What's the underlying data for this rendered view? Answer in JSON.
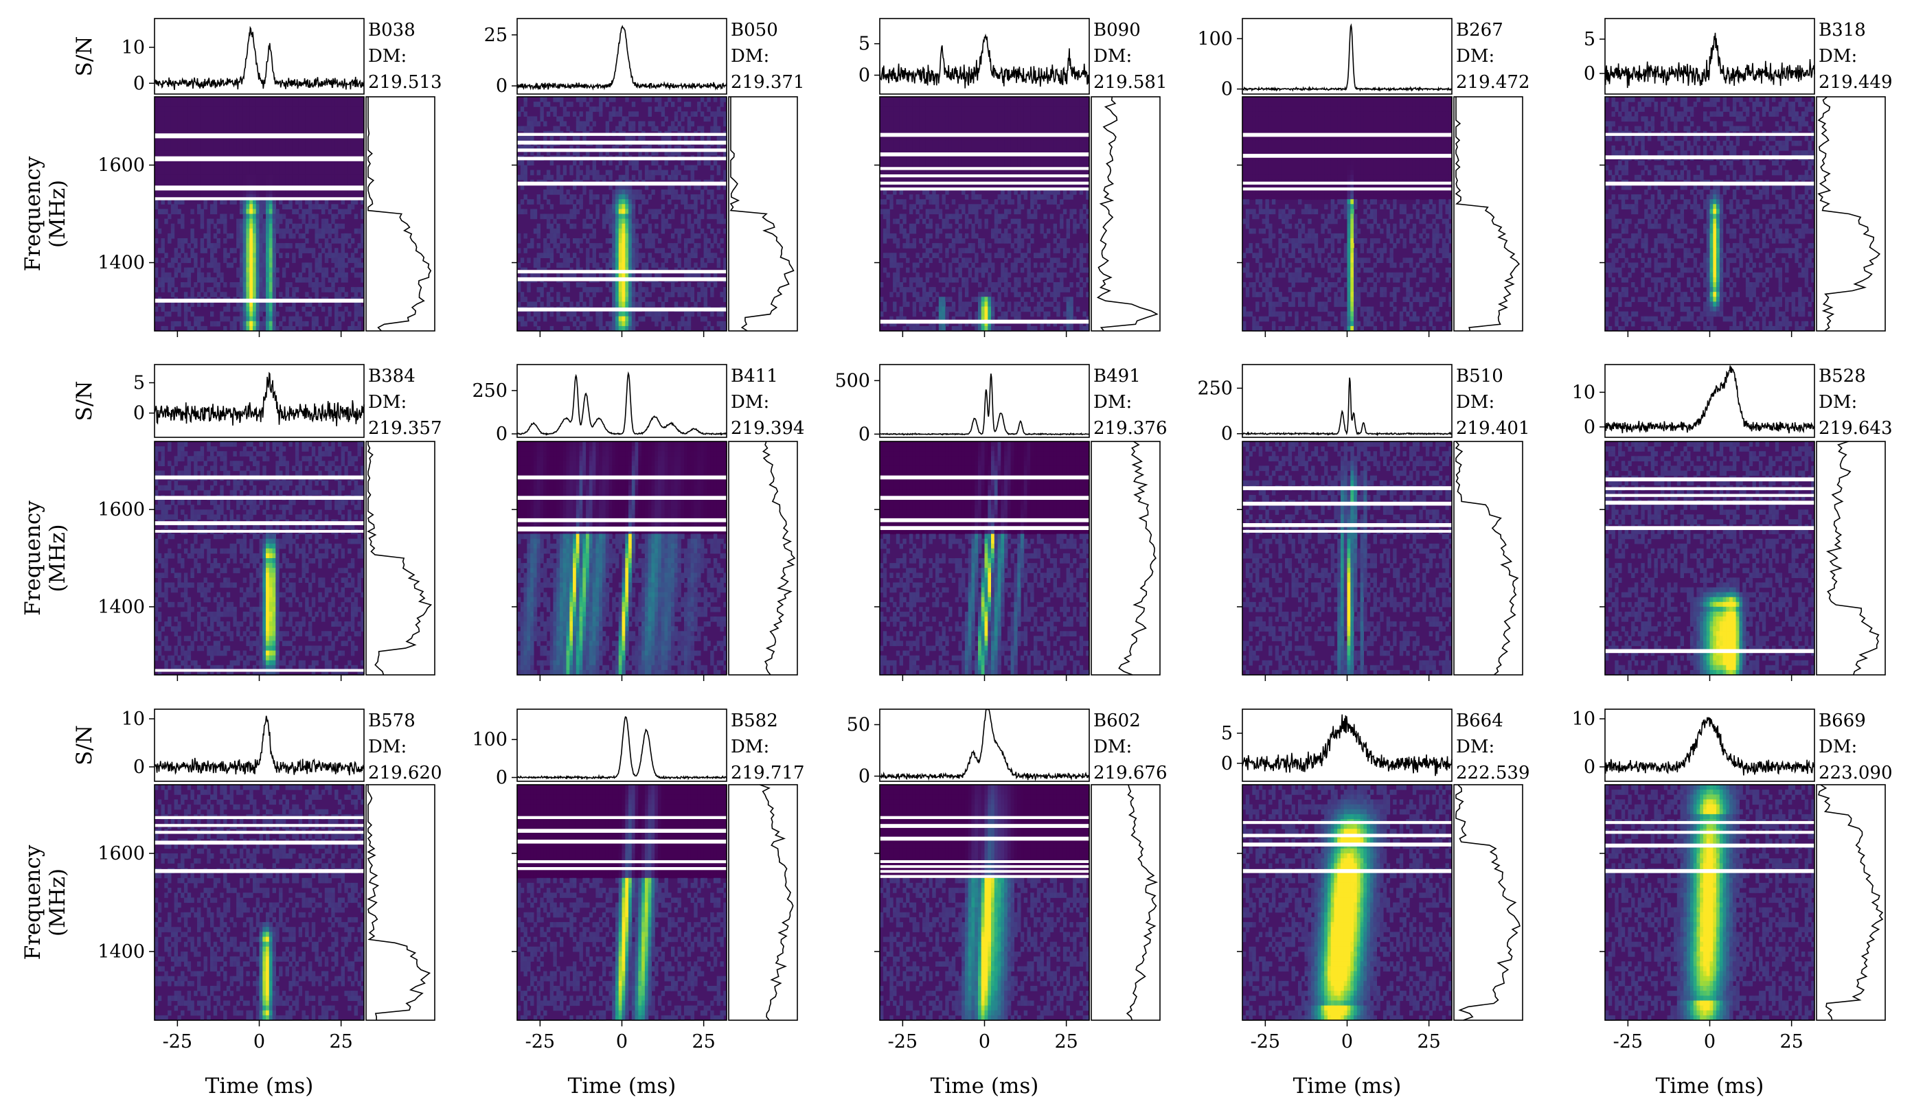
{
  "chart_data": {
    "type": "grid",
    "shared_axes": {
      "sn_ylabel": "S/N",
      "freq_ylabel": "Frequency\n(MHz)",
      "xlabel": "Time (ms)",
      "xlim": [
        -32,
        32
      ],
      "xticks": [
        -25,
        0,
        25
      ],
      "freq_ylim": [
        1260,
        1740
      ],
      "freq_yticks": [
        1400,
        1600
      ]
    },
    "bursts": [
      {
        "name": "B038",
        "dm_label": "DM:",
        "dm": "219.513",
        "sn_yticks": [
          0,
          10
        ],
        "sn_ylim": [
          -3,
          18
        ],
        "pulses": [
          {
            "t": -2.5,
            "amp": 15,
            "w": 1.2
          },
          {
            "t": 3.2,
            "amp": 10,
            "w": 0.7
          }
        ],
        "noise": 1.0,
        "masked_bands": [
          [
            1655,
            1665
          ],
          [
            1608,
            1618
          ],
          [
            1548,
            1558
          ],
          [
            1528,
            1534
          ],
          [
            1318,
            1326
          ]
        ],
        "masked_bottom": 1530,
        "masked_level": 0.04,
        "burst_freq": [
          1280,
          1500
        ],
        "spec_trend": 0.6,
        "drift": 0
      },
      {
        "name": "B050",
        "dm_label": "DM:",
        "dm": "219.371",
        "sn_yticks": [
          0,
          25
        ],
        "sn_ylim": [
          -4,
          33
        ],
        "pulses": [
          {
            "t": 0.3,
            "amp": 29,
            "w": 1.4
          }
        ],
        "noise": 1.0,
        "masked_bands": [
          [
            1660,
            1666
          ],
          [
            1642,
            1650
          ],
          [
            1627,
            1634
          ],
          [
            1610,
            1617
          ],
          [
            1558,
            1566
          ],
          [
            1378,
            1385
          ],
          [
            1362,
            1370
          ],
          [
            1300,
            1308
          ]
        ],
        "masked_bottom": 0,
        "masked_level": 0,
        "burst_freq": [
          1290,
          1500
        ],
        "spec_trend": 0.5,
        "drift": 0
      },
      {
        "name": "B090",
        "dm_label": "DM:",
        "dm": "219.581",
        "sn_yticks": [
          0,
          5
        ],
        "sn_ylim": [
          -3,
          9
        ],
        "pulses": [
          {
            "t": -13,
            "amp": 4,
            "w": 0.4
          },
          {
            "t": 0.3,
            "amp": 6.5,
            "w": 1.0
          },
          {
            "t": 26,
            "amp": 3,
            "w": 0.3
          }
        ],
        "noise": 1.2,
        "masked_bands": [
          [
            1658,
            1666
          ],
          [
            1618,
            1626
          ],
          [
            1590,
            1596
          ],
          [
            1575,
            1581
          ],
          [
            1560,
            1566
          ],
          [
            1548,
            1554
          ],
          [
            1275,
            1283
          ]
        ],
        "masked_bottom": 1545,
        "masked_level": 0.04,
        "burst_freq": [
          1270,
          1320
        ],
        "spec_trend": -0.3,
        "drift": 0
      },
      {
        "name": "B267",
        "dm_label": "DM:",
        "dm": "219.472",
        "sn_yticks": [
          0,
          100
        ],
        "sn_ylim": [
          -10,
          140
        ],
        "pulses": [
          {
            "t": 1.2,
            "amp": 128,
            "w": 0.5
          }
        ],
        "noise": 1.5,
        "masked_bands": [
          [
            1658,
            1666
          ],
          [
            1615,
            1623
          ],
          [
            1560,
            1566
          ],
          [
            1548,
            1554
          ]
        ],
        "masked_bottom": 1527,
        "masked_level": 0.03,
        "burst_freq": [
          1270,
          1520
        ],
        "spec_trend": 0.4,
        "drift": 0
      },
      {
        "name": "B318",
        "dm_label": "DM:",
        "dm": "219.449",
        "sn_yticks": [
          0,
          5
        ],
        "sn_ylim": [
          -3,
          8
        ],
        "pulses": [
          {
            "t": 1.5,
            "amp": 5,
            "w": 0.9
          }
        ],
        "noise": 1.1,
        "masked_bands": [
          [
            1660,
            1666
          ],
          [
            1612,
            1620
          ],
          [
            1558,
            1566
          ]
        ],
        "masked_bottom": 0,
        "masked_level": 0,
        "burst_freq": [
          1340,
          1500
        ],
        "spec_trend": 0.1,
        "drift": 0
      },
      {
        "name": "B384",
        "dm_label": "DM:",
        "dm": "219.357",
        "sn_yticks": [
          0,
          5
        ],
        "sn_ylim": [
          -4,
          8
        ],
        "pulses": [
          {
            "t": 2.8,
            "amp": 5,
            "w": 0.9
          },
          {
            "t": 4.5,
            "amp": 3,
            "w": 0.5
          }
        ],
        "noise": 1.2,
        "masked_bands": [
          [
            1662,
            1670
          ],
          [
            1620,
            1628
          ],
          [
            1568,
            1576
          ],
          [
            1553,
            1558
          ],
          [
            1268,
            1272
          ]
        ],
        "masked_bottom": 0,
        "masked_level": 0,
        "burst_freq": [
          1310,
          1500
        ],
        "spec_trend": 0.4,
        "drift": 0
      },
      {
        "name": "B411",
        "dm_label": "DM:",
        "dm": "219.394",
        "sn_yticks": [
          0,
          250
        ],
        "sn_ylim": [
          -20,
          400
        ],
        "pulses": [
          {
            "t": -27,
            "amp": 60,
            "w": 1.2
          },
          {
            "t": -17,
            "amp": 90,
            "w": 1.6
          },
          {
            "t": -14,
            "amp": 320,
            "w": 0.6
          },
          {
            "t": -11,
            "amp": 230,
            "w": 0.8
          },
          {
            "t": -7,
            "amp": 90,
            "w": 1.4
          },
          {
            "t": 2,
            "amp": 350,
            "w": 0.6
          },
          {
            "t": 10,
            "amp": 100,
            "w": 1.5
          },
          {
            "t": 15,
            "amp": 60,
            "w": 1.5
          },
          {
            "t": 22,
            "amp": 30,
            "w": 1.2
          }
        ],
        "noise": 3,
        "masked_bands": [
          [
            1662,
            1670
          ],
          [
            1620,
            1628
          ],
          [
            1574,
            1582
          ],
          [
            1555,
            1565
          ]
        ],
        "masked_bottom": 1545,
        "masked_level": 0,
        "burst_freq": [
          1260,
          1740
        ],
        "spec_trend": 0.1,
        "drift": 5
      },
      {
        "name": "B491",
        "dm_label": "DM:",
        "dm": "219.376",
        "sn_yticks": [
          0,
          500
        ],
        "sn_ylim": [
          -30,
          650
        ],
        "pulses": [
          {
            "t": -3,
            "amp": 150,
            "w": 0.7
          },
          {
            "t": 0.5,
            "amp": 420,
            "w": 0.4
          },
          {
            "t": 2,
            "amp": 560,
            "w": 0.4
          },
          {
            "t": 5,
            "amp": 200,
            "w": 0.8
          },
          {
            "t": 11,
            "amp": 120,
            "w": 0.5
          }
        ],
        "noise": 4,
        "masked_bands": [
          [
            1662,
            1670
          ],
          [
            1620,
            1628
          ],
          [
            1574,
            1582
          ],
          [
            1558,
            1566
          ]
        ],
        "masked_bottom": 1545,
        "masked_level": 0,
        "burst_freq": [
          1260,
          1740
        ],
        "spec_trend": -0.2,
        "drift": 5
      },
      {
        "name": "B510",
        "dm_label": "DM:",
        "dm": "219.401",
        "sn_yticks": [
          0,
          250
        ],
        "sn_ylim": [
          -20,
          380
        ],
        "pulses": [
          {
            "t": -1.5,
            "amp": 120,
            "w": 0.5
          },
          {
            "t": 0.8,
            "amp": 310,
            "w": 0.3
          },
          {
            "t": 2,
            "amp": 110,
            "w": 0.4
          },
          {
            "t": 5,
            "amp": 60,
            "w": 0.4
          }
        ],
        "noise": 3,
        "masked_bands": [
          [
            1640,
            1648
          ],
          [
            1608,
            1616
          ],
          [
            1564,
            1572
          ],
          [
            1553,
            1558
          ]
        ],
        "masked_bottom": 0,
        "masked_level": 0.03,
        "burst_freq": [
          1260,
          1610
        ],
        "spec_trend": 0.3,
        "drift": 1.5
      },
      {
        "name": "B528",
        "dm_label": "DM:",
        "dm": "219.643",
        "sn_yticks": [
          0,
          10
        ],
        "sn_ylim": [
          -3,
          18
        ],
        "pulses": [
          {
            "t": 2.5,
            "amp": 11,
            "w": 3
          },
          {
            "t": 7,
            "amp": 13,
            "w": 1.6
          }
        ],
        "noise": 1.0,
        "masked_bands": [
          [
            1658,
            1666
          ],
          [
            1640,
            1646
          ],
          [
            1626,
            1632
          ],
          [
            1610,
            1618
          ],
          [
            1558,
            1566
          ],
          [
            1305,
            1313
          ]
        ],
        "masked_bottom": 0,
        "masked_level": 0,
        "burst_freq": [
          1260,
          1400
        ],
        "spec_trend": -0.5,
        "drift": 0
      },
      {
        "name": "B578",
        "dm_label": "DM:",
        "dm": "219.620",
        "sn_yticks": [
          0,
          10
        ],
        "sn_ylim": [
          -3,
          12
        ],
        "pulses": [
          {
            "t": 2.2,
            "amp": 10,
            "w": 1.0
          }
        ],
        "noise": 1.0,
        "masked_bands": [
          [
            1670,
            1676
          ],
          [
            1654,
            1660
          ],
          [
            1640,
            1646
          ],
          [
            1618,
            1626
          ],
          [
            1560,
            1568
          ]
        ],
        "masked_bottom": 0,
        "masked_level": 0,
        "burst_freq": [
          1280,
          1420
        ],
        "spec_trend": 0.3,
        "drift": 0
      },
      {
        "name": "B582",
        "dm_label": "DM:",
        "dm": "219.717",
        "sn_yticks": [
          0,
          100
        ],
        "sn_ylim": [
          -10,
          180
        ],
        "pulses": [
          {
            "t": 1.2,
            "amp": 160,
            "w": 1.0
          },
          {
            "t": 7.5,
            "amp": 125,
            "w": 1.2
          }
        ],
        "noise": 2,
        "masked_bands": [
          [
            1670,
            1676
          ],
          [
            1642,
            1650
          ],
          [
            1620,
            1628
          ],
          [
            1580,
            1586
          ],
          [
            1566,
            1572
          ]
        ],
        "masked_bottom": 1548,
        "masked_level": 0,
        "burst_freq": [
          1260,
          1740
        ],
        "spec_trend": 0.1,
        "drift": 4
      },
      {
        "name": "B602",
        "dm_label": "DM:",
        "dm": "219.676",
        "sn_yticks": [
          0,
          50
        ],
        "sn_ylim": [
          -5,
          65
        ],
        "pulses": [
          {
            "t": -3.5,
            "amp": 22,
            "w": 1.2
          },
          {
            "t": 0.8,
            "amp": 58,
            "w": 1.2
          },
          {
            "t": 4,
            "amp": 28,
            "w": 2.2
          }
        ],
        "noise": 1.8,
        "masked_bands": [
          [
            1670,
            1676
          ],
          [
            1652,
            1660
          ],
          [
            1626,
            1634
          ],
          [
            1582,
            1586
          ],
          [
            1572,
            1576
          ],
          [
            1562,
            1566
          ],
          [
            1550,
            1556
          ]
        ],
        "masked_bottom": 1545,
        "masked_level": 0,
        "burst_freq": [
          1260,
          1740
        ],
        "spec_trend": 0.1,
        "drift": 3
      },
      {
        "name": "B664",
        "dm_label": "DM:",
        "dm": "222.539",
        "sn_yticks": [
          0,
          5
        ],
        "sn_ylim": [
          -3,
          9
        ],
        "pulses": [
          {
            "t": -2,
            "amp": 5.5,
            "w": 3.2
          },
          {
            "t": 3,
            "amp": 3,
            "w": 3
          }
        ],
        "noise": 1.1,
        "masked_bands": [
          [
            1660,
            1666
          ],
          [
            1633,
            1640
          ],
          [
            1614,
            1622
          ],
          [
            1560,
            1568
          ]
        ],
        "masked_bottom": 0,
        "masked_level": 0,
        "burst_freq": [
          1290,
          1620
        ],
        "spec_trend": 0.2,
        "drift": 6
      },
      {
        "name": "B669",
        "dm_label": "DM:",
        "dm": "223.090",
        "sn_yticks": [
          0,
          10
        ],
        "sn_ylim": [
          -3,
          12
        ],
        "pulses": [
          {
            "t": -0.5,
            "amp": 9.5,
            "w": 3.5
          }
        ],
        "noise": 1.0,
        "masked_bands": [
          [
            1660,
            1666
          ],
          [
            1640,
            1646
          ],
          [
            1612,
            1620
          ],
          [
            1560,
            1568
          ]
        ],
        "masked_bottom": 0,
        "masked_level": 0,
        "burst_freq": [
          1300,
          1680
        ],
        "spec_trend": 0.1,
        "drift": 2
      }
    ]
  }
}
